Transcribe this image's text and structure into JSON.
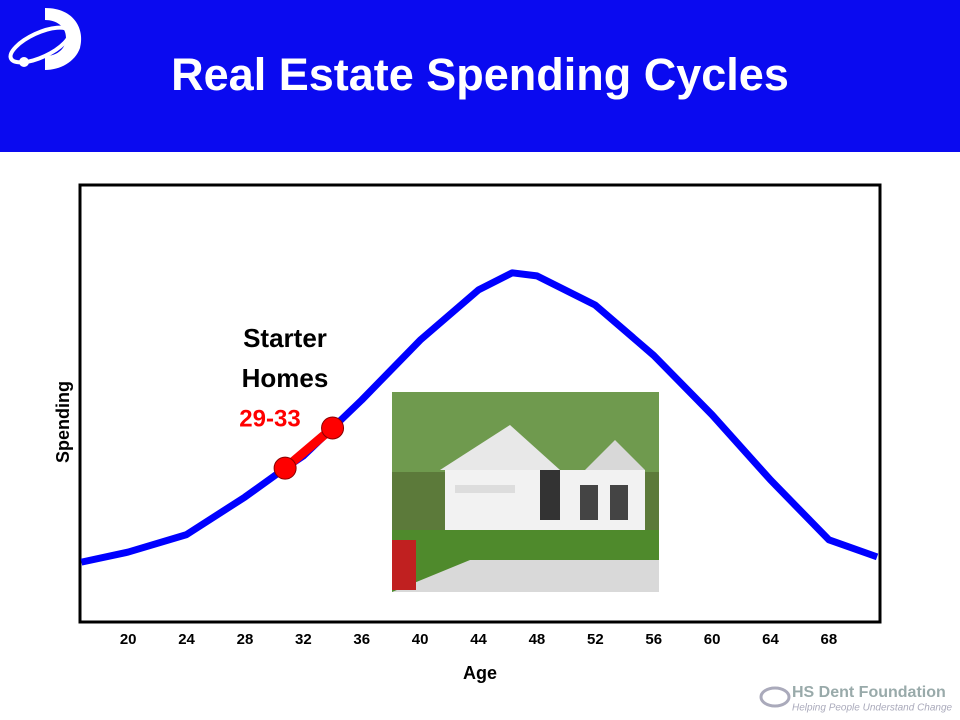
{
  "chart_data": {
    "type": "line",
    "title": "Real Estate Spending Cycles",
    "x_label": "Age",
    "y_label": "Spending",
    "x": [
      16.8,
      20,
      24,
      28,
      30.75,
      32,
      34,
      36,
      40,
      44,
      46.3,
      48,
      52,
      56,
      60,
      64,
      68,
      71.3
    ],
    "values": [
      13.7,
      16,
      20,
      28.6,
      35.2,
      38,
      44.4,
      50.8,
      64.5,
      76,
      79.9,
      79.2,
      72.5,
      61,
      47.4,
      32.5,
      18.8,
      14.9
    ],
    "color": "#0000ff",
    "highlight": {
      "label": "Starter Homes",
      "range_label": "29-33",
      "x": [
        30.75,
        34
      ],
      "values": [
        35.2,
        44.4
      ],
      "color": "#ff0000"
    },
    "xlim": [
      16.7,
      71.5
    ],
    "xticks": [
      20,
      24,
      28,
      32,
      36,
      40,
      44,
      48,
      52,
      56,
      60,
      64,
      68
    ],
    "ylim": [
      0,
      100
    ],
    "logo": {
      "name": "HS Dent Foundation",
      "tagline": "Helping People Understand Change"
    }
  }
}
